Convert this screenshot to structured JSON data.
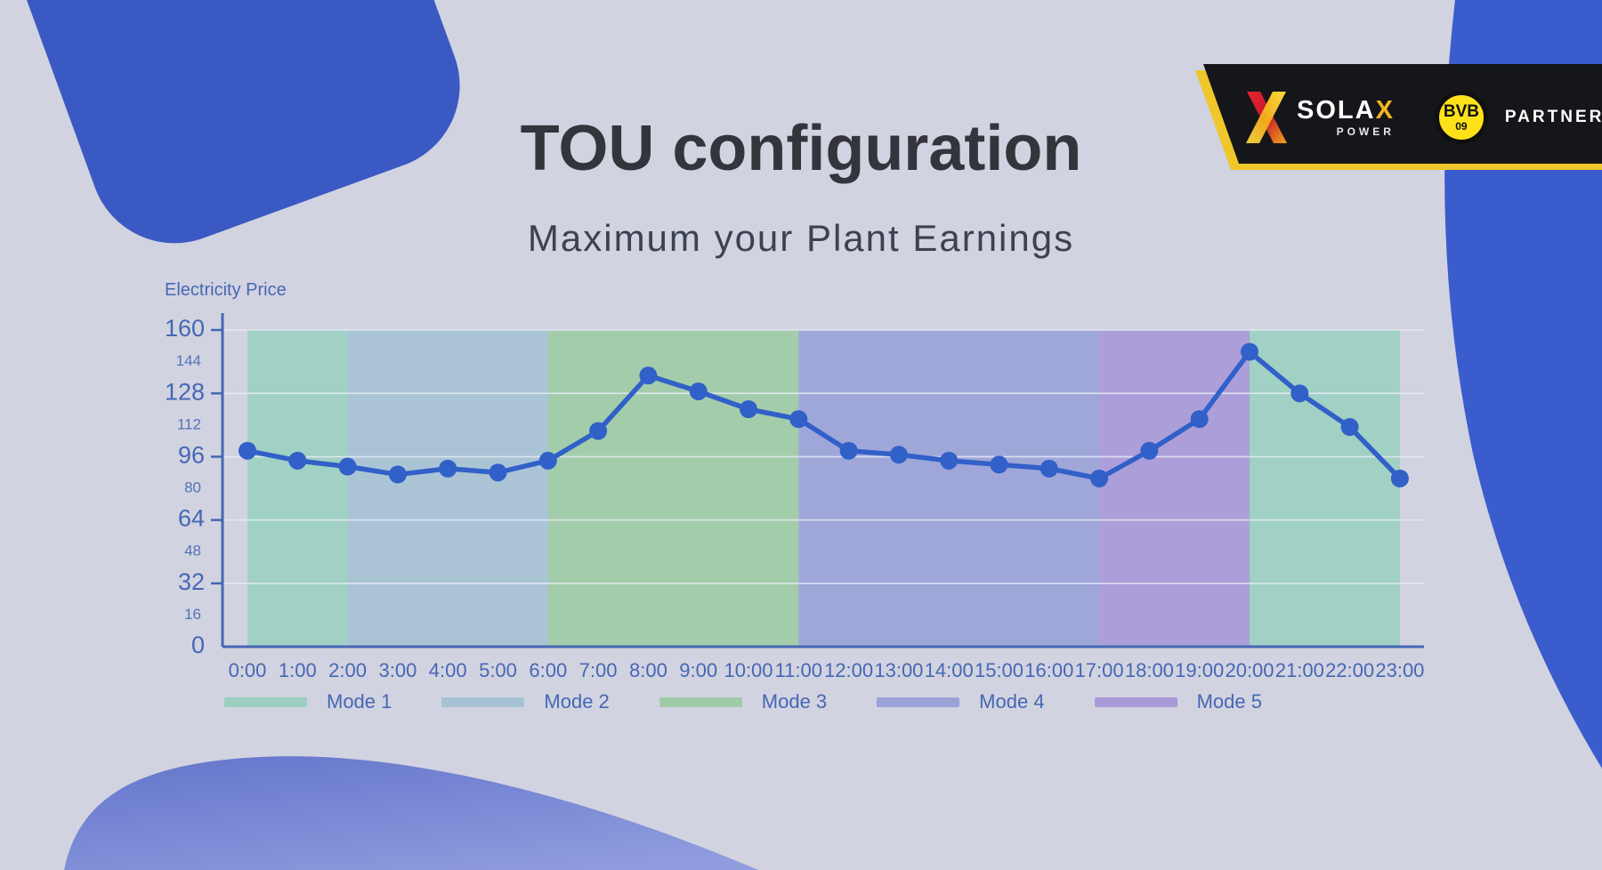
{
  "page": {
    "title": "TOU configuration",
    "subtitle": "Maximum your Plant Earnings"
  },
  "branding": {
    "solax_word_main": "SOLA",
    "solax_word_x": "X",
    "solax_power": "POWER",
    "bvb_line1": "BVB",
    "bvb_line2": "09",
    "partner_label": "PARTNER"
  },
  "colors": {
    "background": "#d2d3e0",
    "accent_blue": "#3b5ccd",
    "accent_blue_soft": "#3a59c3",
    "banner_black": "#15161a",
    "banner_yellow": "#efc62b",
    "bvb_yellow": "#ffe11a",
    "title_text": "#34343c",
    "subtitle_text": "#3b4252",
    "axis_blue": "#4567b5"
  },
  "chart_data": {
    "type": "line",
    "ylabel": "Electricity Price",
    "x": [
      "0:00",
      "1:00",
      "2:00",
      "3:00",
      "4:00",
      "5:00",
      "6:00",
      "7:00",
      "8:00",
      "9:00",
      "10:00",
      "11:00",
      "12:00",
      "13:00",
      "14:00",
      "15:00",
      "16:00",
      "17:00",
      "18:00",
      "19:00",
      "20:00",
      "21:00",
      "22:00",
      "23:00"
    ],
    "series": [
      {
        "name": "Electricity Price",
        "values": [
          99,
          94,
          91,
          87,
          90,
          88,
          94,
          109,
          137,
          129,
          120,
          115,
          99,
          97,
          94,
          92,
          90,
          85,
          99,
          115,
          149,
          128,
          111,
          85
        ]
      }
    ],
    "ylim": [
      0,
      160
    ],
    "y_ticks_major": [
      0,
      32,
      64,
      96,
      128,
      160
    ],
    "y_ticks_minor": [
      16,
      48,
      80,
      112,
      144
    ],
    "grid": "horizontal-major",
    "legend_position": "bottom",
    "line_color": "#3160c8",
    "point_color": "#3160c8",
    "axis_color": "#4567b5",
    "grid_color": "#e9eef7",
    "modes": [
      {
        "label": "Mode 1",
        "color": "#9ccfc2",
        "hour_ranges": [
          [
            0,
            2
          ],
          [
            20,
            23
          ]
        ]
      },
      {
        "label": "Mode 2",
        "color": "#a6c2d4",
        "hour_ranges": [
          [
            2,
            6
          ]
        ]
      },
      {
        "label": "Mode 3",
        "color": "#9ecba6",
        "hour_ranges": [
          [
            6,
            11
          ]
        ]
      },
      {
        "label": "Mode 4",
        "color": "#9aa3d8",
        "hour_ranges": [
          [
            11,
            17
          ]
        ]
      },
      {
        "label": "Mode 5",
        "color": "#a89ad8",
        "hour_ranges": [
          [
            17,
            20
          ]
        ]
      }
    ]
  }
}
